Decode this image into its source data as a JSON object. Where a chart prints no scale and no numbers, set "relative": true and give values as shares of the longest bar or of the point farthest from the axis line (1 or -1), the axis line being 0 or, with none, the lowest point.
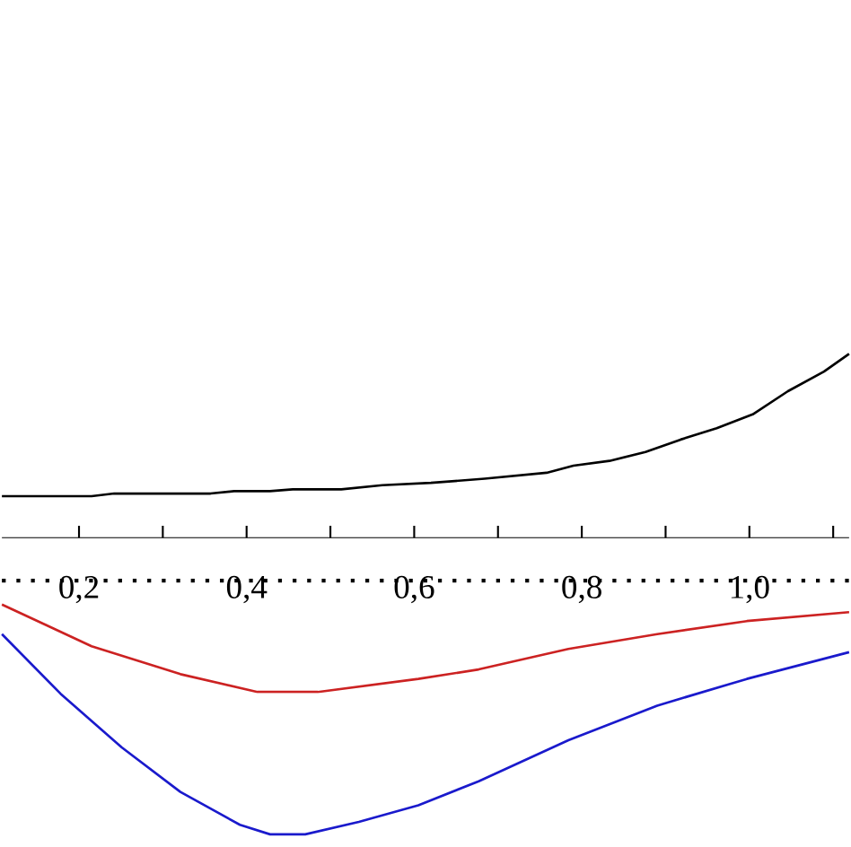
{
  "chart_data": {
    "type": "line",
    "relative": true,
    "marker": "none",
    "line_style": "solid",
    "xlim": [
      0.108,
      1.119
    ],
    "xticks": [
      {
        "value": 0.2,
        "label": "0,2"
      },
      {
        "value": 0.3,
        "label": null
      },
      {
        "value": 0.4,
        "label": "0,4"
      },
      {
        "value": 0.5,
        "label": null
      },
      {
        "value": 0.6,
        "label": "0,6"
      },
      {
        "value": 0.7,
        "label": null
      },
      {
        "value": 0.8,
        "label": "0,8"
      },
      {
        "value": 0.9,
        "label": null
      },
      {
        "value": 1.0,
        "label": "1,0"
      },
      {
        "value": 1.1,
        "label": null
      }
    ],
    "ref_lines": [
      {
        "axis": "y",
        "value": -0.145,
        "line_style": "dotted",
        "color": "#000000"
      }
    ],
    "series": [
      {
        "color": "#000000",
        "x": [
          0.108,
          0.215,
          0.242,
          0.357,
          0.385,
          0.428,
          0.455,
          0.513,
          0.562,
          0.62,
          0.684,
          0.758,
          0.79,
          0.833,
          0.876,
          0.918,
          0.961,
          1.004,
          1.046,
          1.089,
          1.119
        ],
        "values": [
          0.14,
          0.14,
          0.149,
          0.149,
          0.157,
          0.157,
          0.163,
          0.163,
          0.177,
          0.185,
          0.199,
          0.219,
          0.243,
          0.259,
          0.289,
          0.331,
          0.369,
          0.416,
          0.494,
          0.56,
          0.62
        ]
      },
      {
        "color": "#cc2222",
        "x": [
          0.108,
          0.161,
          0.215,
          0.321,
          0.413,
          0.485,
          0.605,
          0.677,
          0.784,
          0.89,
          0.997,
          1.119
        ],
        "values": [
          -0.225,
          -0.295,
          -0.366,
          -0.46,
          -0.52,
          -0.52,
          -0.476,
          -0.444,
          -0.375,
          -0.325,
          -0.281,
          -0.251
        ]
      },
      {
        "color": "#1a1acc",
        "x": [
          0.108,
          0.178,
          0.251,
          0.321,
          0.392,
          0.428,
          0.47,
          0.534,
          0.605,
          0.677,
          0.784,
          0.89,
          0.997,
          1.119
        ],
        "values": [
          -0.325,
          -0.526,
          -0.707,
          -0.857,
          -0.968,
          -1.0,
          -1.0,
          -0.958,
          -0.902,
          -0.821,
          -0.683,
          -0.566,
          -0.476,
          -0.386
        ]
      }
    ]
  }
}
